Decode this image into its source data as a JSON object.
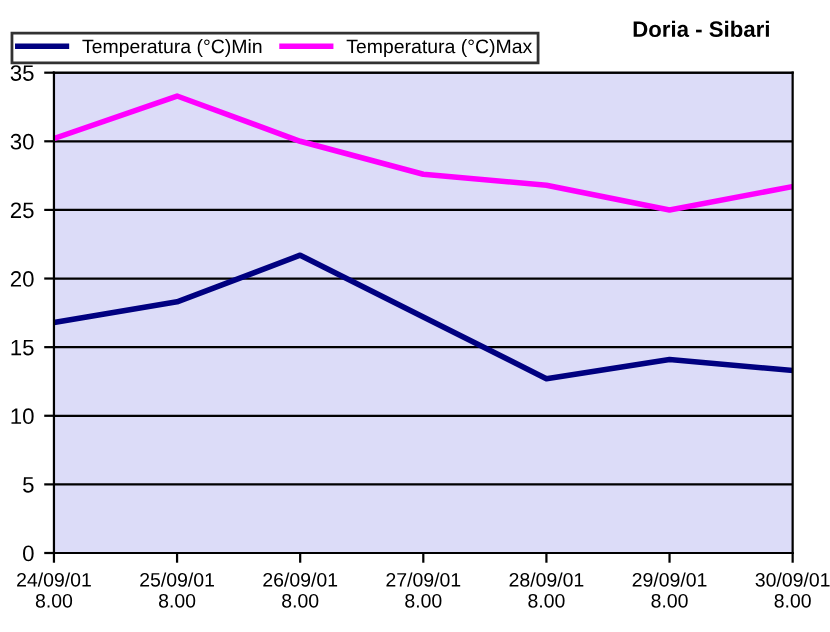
{
  "chart_data": {
    "type": "line",
    "title": "Doria - Sibari",
    "categories": [
      "24/09/01\n8.00",
      "25/09/01\n8.00",
      "26/09/01\n8.00",
      "27/09/01\n8.00",
      "28/09/01\n8.00",
      "29/09/01\n8.00",
      "30/09/01\n8.00"
    ],
    "series": [
      {
        "name": "Temperatura (°C)Min",
        "color": "#000080",
        "values": [
          16.8,
          18.3,
          21.7,
          17.2,
          12.7,
          14.1,
          13.3
        ]
      },
      {
        "name": "Temperatura (°C)Max",
        "color": "#ff00ff",
        "values": [
          30.2,
          33.3,
          30.0,
          27.6,
          26.8,
          25.0,
          26.7
        ]
      }
    ],
    "ylim": [
      0,
      35
    ],
    "yticks": [
      0,
      5,
      10,
      15,
      20,
      25,
      30,
      35
    ],
    "grid": "y",
    "legend": "top left",
    "marker": "none",
    "line_style": "solid"
  }
}
